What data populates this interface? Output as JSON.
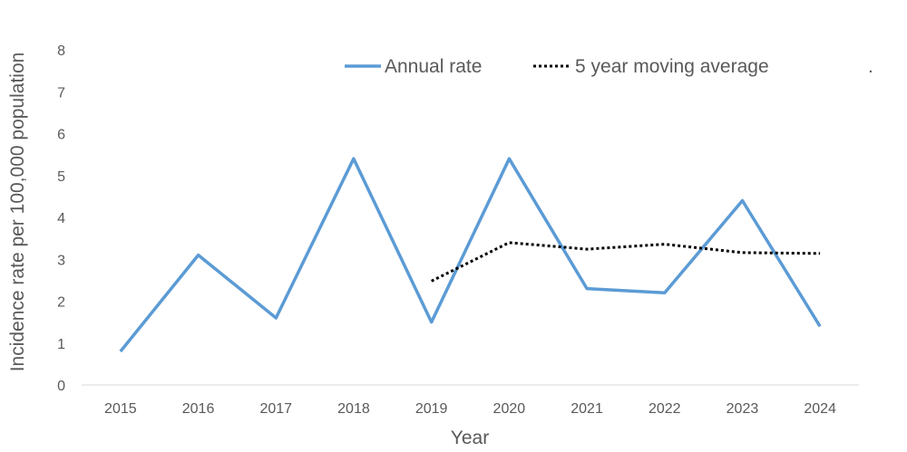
{
  "chart_data": {
    "type": "line",
    "xlabel": "Year",
    "ylabel": "Incidence rate per 100,000 population",
    "categories": [
      "2015",
      "2016",
      "2017",
      "2018",
      "2019",
      "2020",
      "2021",
      "2022",
      "2023",
      "2024"
    ],
    "ylim": [
      0,
      8
    ],
    "yticks": [
      "0",
      "1",
      "2",
      "3",
      "4",
      "5",
      "6",
      "7",
      "8"
    ],
    "grid": false,
    "legend_position": "top",
    "legend_trailing_mark": ".",
    "series": [
      {
        "name": "Annual rate",
        "style": "solid",
        "color": "#5b9bd5",
        "values": [
          0.8,
          3.1,
          1.6,
          5.4,
          1.5,
          5.4,
          2.3,
          2.2,
          4.4,
          1.4
        ]
      },
      {
        "name": "5 year moving average",
        "style": "dotted",
        "color": "#000000",
        "values": [
          null,
          null,
          null,
          null,
          2.48,
          3.4,
          3.24,
          3.36,
          3.16,
          3.14
        ]
      }
    ]
  }
}
